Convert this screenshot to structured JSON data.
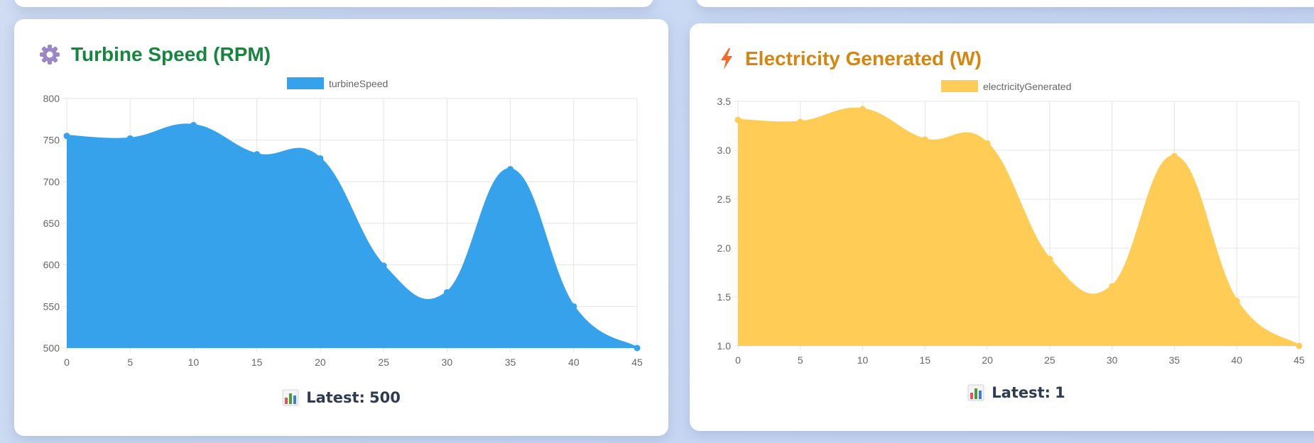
{
  "cards": [
    {
      "title": "Turbine Speed (RPM)",
      "title_color": "#17853f",
      "icon": "gear-icon",
      "latest_label": "Latest:",
      "latest_value": "500",
      "latest_icon": "bar-chart-icon"
    },
    {
      "title": "Electricity Generated (W)",
      "title_color": "#d4860f",
      "icon": "lightning-icon",
      "latest_label": "Latest:",
      "latest_value": "1",
      "latest_icon": "bar-chart-icon"
    }
  ],
  "chart_data": [
    {
      "type": "area",
      "x": [
        0,
        5,
        10,
        15,
        20,
        25,
        30,
        35,
        40,
        45
      ],
      "series": [
        {
          "name": "turbineSpeed",
          "values": [
            755,
            752,
            768,
            733,
            728,
            599,
            567,
            715,
            550,
            500
          ],
          "color": "#36a2eb"
        }
      ],
      "ylim": [
        500,
        800
      ],
      "yticks": [
        500,
        550,
        600,
        650,
        700,
        750,
        800
      ],
      "ytick_labels": [
        "500",
        "550",
        "600",
        "650",
        "700",
        "750",
        "800"
      ],
      "xticks": [
        0,
        5,
        10,
        15,
        20,
        25,
        30,
        35,
        40,
        45
      ],
      "xtick_labels": [
        "0",
        "5",
        "10",
        "15",
        "20",
        "25",
        "30",
        "35",
        "40",
        "45"
      ],
      "grid": true,
      "legend": "top-center"
    },
    {
      "type": "area",
      "x": [
        0,
        5,
        10,
        15,
        20,
        25,
        30,
        35,
        40,
        45
      ],
      "series": [
        {
          "name": "electricityGenerated",
          "values": [
            3.31,
            3.29,
            3.42,
            3.11,
            3.07,
            1.89,
            1.61,
            2.94,
            1.46,
            1.0
          ],
          "color": "#ffcd56"
        }
      ],
      "ylim": [
        1.0,
        3.5
      ],
      "yticks": [
        1.0,
        1.5,
        2.0,
        2.5,
        3.0,
        3.5
      ],
      "ytick_labels": [
        "1.0",
        "1.5",
        "2.0",
        "2.5",
        "3.0",
        "3.5"
      ],
      "xticks": [
        0,
        5,
        10,
        15,
        20,
        25,
        30,
        35,
        40,
        45
      ],
      "xtick_labels": [
        "0",
        "5",
        "10",
        "15",
        "20",
        "25",
        "30",
        "35",
        "40",
        "45"
      ],
      "grid": true,
      "legend": "top-center"
    }
  ]
}
